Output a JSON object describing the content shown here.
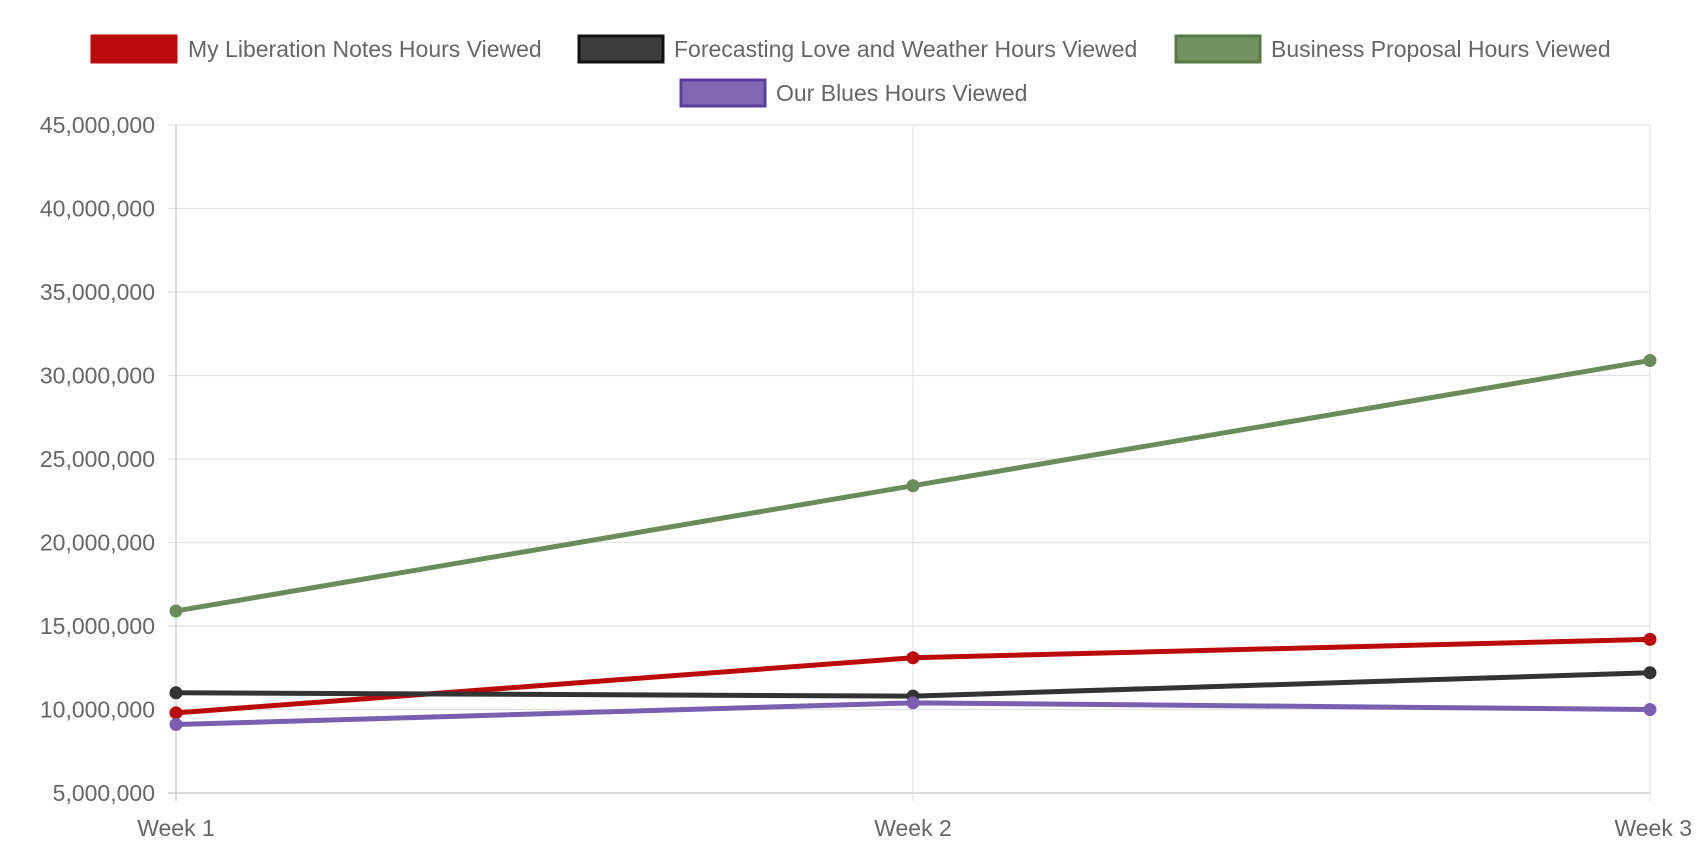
{
  "chart_data": {
    "type": "line",
    "title": "",
    "xlabel": "",
    "ylabel": "",
    "categories": [
      "Week 1",
      "Week 2",
      "Week 3"
    ],
    "ylim": [
      5000000,
      45000000
    ],
    "yticks": [
      5000000,
      10000000,
      15000000,
      20000000,
      25000000,
      30000000,
      35000000,
      40000000,
      45000000
    ],
    "ytick_labels": [
      "5,000,000",
      "10,000,000",
      "15,000,000",
      "20,000,000",
      "25,000,000",
      "30,000,000",
      "35,000,000",
      "40,000,000",
      "45,000,000"
    ],
    "grid": true,
    "legend_position": "top",
    "series": [
      {
        "name": "My Liberation Notes Hours Viewed",
        "values": [
          9800000,
          13100000,
          14200000
        ],
        "color": "#bb0a0a"
      },
      {
        "name": "Forecasting Love and Weather Hours Viewed",
        "values": [
          11000000,
          10800000,
          12200000
        ],
        "color": "#333333"
      },
      {
        "name": "Business Proposal Hours Viewed",
        "values": [
          15900000,
          23400000,
          30900000
        ],
        "color": "#6a8c5b"
      },
      {
        "name": "Our Blues Hours Viewed",
        "values": [
          9100000,
          10400000,
          10000000
        ],
        "color": "#7a5fb0"
      }
    ]
  }
}
